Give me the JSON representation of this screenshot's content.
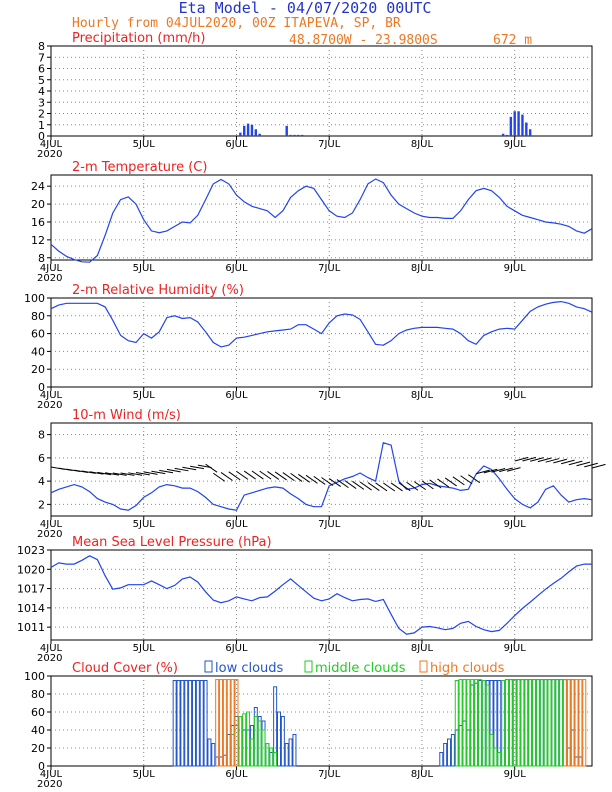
{
  "header": {
    "title": "Eta Model - 04/07/2020 00UTC",
    "subtitle": "Hourly from 04JUL2020, 00Z  ITAPEVA, SP, BR",
    "coords": "48.8700W - 23.9800S",
    "elevation": "672  m"
  },
  "colors": {
    "title": "#2233cc",
    "subtitle": "#ee7722",
    "panel_title": "#ee2222",
    "line": "#2244ee",
    "low_clouds": "#2255cc",
    "middle_clouds": "#22cc22",
    "high_clouds": "#ee7722",
    "grid": "#888888"
  },
  "x_axis": {
    "start_label": "4JUL",
    "year_label": "2020",
    "ticks": [
      "4JUL",
      "5JUL",
      "6JUL",
      "7JUL",
      "8JUL",
      "9JUL"
    ]
  },
  "chart_data": [
    {
      "type": "bar",
      "title": "Precipitation (mm/h)",
      "ylim": [
        0,
        8
      ],
      "yticks": [
        "0",
        "1",
        "2",
        "3",
        "4",
        "5",
        "6",
        "7",
        "8"
      ],
      "x_units": "hours since 04JUL2020 00Z",
      "x": [
        49,
        50,
        51,
        52,
        53,
        54,
        61,
        62,
        63,
        64,
        65,
        117,
        118,
        119,
        120,
        121,
        122,
        123,
        124
      ],
      "values": [
        0.3,
        0.9,
        1.1,
        1.0,
        0.6,
        0.2,
        0.9,
        0.1,
        0.1,
        0.1,
        0.1,
        0.2,
        0.1,
        1.7,
        2.2,
        2.2,
        1.9,
        1.2,
        0.6
      ]
    },
    {
      "type": "line",
      "title": "2-m Temperature (C)",
      "ylim": [
        7.5,
        26.5
      ],
      "yticks": [
        "8",
        "12",
        "16",
        "20",
        "24"
      ],
      "x_units": "hours since 04JUL2020 00Z",
      "x": [
        0,
        2,
        4,
        6,
        8,
        10,
        12,
        14,
        16,
        18,
        20,
        22,
        24,
        26,
        28,
        30,
        32,
        34,
        36,
        38,
        40,
        42,
        44,
        46,
        48,
        50,
        52,
        54,
        56,
        58,
        60,
        62,
        64,
        66,
        68,
        70,
        72,
        74,
        76,
        78,
        80,
        82,
        84,
        86,
        88,
        90,
        92,
        94,
        96,
        98,
        100,
        102,
        104,
        106,
        108,
        110,
        112,
        114,
        116,
        118,
        120,
        122,
        124,
        126,
        128,
        130,
        132,
        134,
        136,
        138,
        140
      ],
      "values": [
        11.0,
        9.5,
        8.3,
        7.6,
        7.1,
        7.0,
        8.5,
        13.0,
        18.0,
        21.0,
        21.6,
        20.0,
        16.5,
        14.0,
        13.6,
        14.0,
        15.0,
        16.0,
        15.8,
        17.5,
        21.0,
        24.5,
        25.5,
        24.5,
        22.0,
        20.5,
        19.5,
        19.0,
        18.5,
        17.0,
        18.5,
        21.5,
        23.0,
        24.0,
        23.5,
        21.0,
        18.5,
        17.3,
        17.0,
        18.0,
        21.0,
        24.5,
        25.6,
        24.8,
        22.0,
        20.0,
        19.0,
        18.0,
        17.3,
        17.0,
        17.0,
        16.8,
        16.8,
        18.5,
        21.0,
        23.0,
        23.5,
        23.0,
        21.5,
        19.5,
        18.5,
        17.5,
        17.0,
        16.5,
        16.0,
        15.8,
        15.5,
        15.0,
        14.0,
        13.5,
        14.5
      ]
    },
    {
      "type": "line",
      "title": "2-m Relative Humidity (%)",
      "ylim": [
        0,
        100
      ],
      "yticks": [
        "0",
        "20",
        "40",
        "60",
        "80",
        "100"
      ],
      "x_units": "hours since 04JUL2020 00Z",
      "x": [
        0,
        2,
        4,
        6,
        8,
        10,
        12,
        14,
        16,
        18,
        20,
        22,
        24,
        26,
        28,
        30,
        32,
        34,
        36,
        38,
        40,
        42,
        44,
        46,
        48,
        50,
        52,
        54,
        56,
        58,
        60,
        62,
        64,
        66,
        68,
        70,
        72,
        74,
        76,
        78,
        80,
        82,
        84,
        86,
        88,
        90,
        92,
        94,
        96,
        98,
        100,
        102,
        104,
        106,
        108,
        110,
        112,
        114,
        116,
        118,
        120,
        122,
        124,
        126,
        128,
        130,
        132,
        134,
        136,
        138,
        140
      ],
      "values": [
        88,
        92,
        94,
        94,
        94,
        94,
        94,
        90,
        75,
        58,
        52,
        50,
        60,
        55,
        62,
        78,
        80,
        77,
        78,
        73,
        62,
        50,
        45,
        47,
        55,
        56,
        58,
        60,
        62,
        63,
        64,
        65,
        70,
        70,
        65,
        60,
        72,
        80,
        82,
        81,
        76,
        62,
        48,
        47,
        52,
        60,
        64,
        66,
        67,
        67,
        67,
        66,
        65,
        60,
        52,
        48,
        58,
        62,
        65,
        66,
        65,
        75,
        85,
        90,
        93,
        95,
        96,
        94,
        90,
        88,
        84
      ]
    },
    {
      "type": "line",
      "title": "10-m Wind (m/s)",
      "ylim": [
        1,
        9
      ],
      "yticks": [
        "2",
        "4",
        "6",
        "8"
      ],
      "x_units": "hours since 04JUL2020 00Z",
      "x": [
        0,
        2,
        4,
        6,
        8,
        10,
        12,
        14,
        16,
        18,
        20,
        22,
        24,
        26,
        28,
        30,
        32,
        34,
        36,
        38,
        40,
        42,
        44,
        46,
        48,
        50,
        52,
        54,
        56,
        58,
        60,
        62,
        64,
        66,
        68,
        70,
        72,
        74,
        76,
        78,
        80,
        82,
        84,
        86,
        88,
        90,
        92,
        94,
        96,
        98,
        100,
        102,
        104,
        106,
        108,
        110,
        112,
        114,
        116,
        118,
        120,
        122,
        124,
        126,
        128,
        130,
        132,
        134,
        136,
        138,
        140
      ],
      "values": [
        3.0,
        3.3,
        3.5,
        3.7,
        3.5,
        3.1,
        2.5,
        2.2,
        2.0,
        1.6,
        1.5,
        1.9,
        2.6,
        3.0,
        3.5,
        3.7,
        3.6,
        3.4,
        3.4,
        3.1,
        2.6,
        2.0,
        1.8,
        1.6,
        1.5,
        2.8,
        3.0,
        3.2,
        3.4,
        3.5,
        3.4,
        2.9,
        2.5,
        2.0,
        1.8,
        1.8,
        3.6,
        3.9,
        4.2,
        4.4,
        4.7,
        4.3,
        4.0,
        7.3,
        7.1,
        4.0,
        3.3,
        3.4,
        3.7,
        3.8,
        3.6,
        3.5,
        3.4,
        3.2,
        3.3,
        4.6,
        5.3,
        5.0,
        4.2,
        3.3,
        2.5,
        2.0,
        1.7,
        2.2,
        3.3,
        3.6,
        2.8,
        2.2,
        2.4,
        2.5,
        2.4
      ]
    },
    {
      "type": "line",
      "title": "Mean Sea Level Pressure (hPa)",
      "ylim": [
        1009,
        1023
      ],
      "yticks": [
        "1011",
        "1014",
        "1017",
        "1020",
        "1023"
      ],
      "x_units": "hours since 04JUL2020 00Z",
      "x": [
        0,
        2,
        4,
        6,
        8,
        10,
        12,
        14,
        16,
        18,
        20,
        22,
        24,
        26,
        28,
        30,
        32,
        34,
        36,
        38,
        40,
        42,
        44,
        46,
        48,
        50,
        52,
        54,
        56,
        58,
        60,
        62,
        64,
        66,
        68,
        70,
        72,
        74,
        76,
        78,
        80,
        82,
        84,
        86,
        88,
        90,
        92,
        94,
        96,
        98,
        100,
        102,
        104,
        106,
        108,
        110,
        112,
        114,
        116,
        118,
        120,
        122,
        124,
        126,
        128,
        130,
        132,
        134,
        136,
        138,
        140
      ],
      "values": [
        1020.3,
        1021.0,
        1020.8,
        1020.8,
        1021.4,
        1022.1,
        1021.5,
        1019.0,
        1016.9,
        1017.1,
        1017.6,
        1017.6,
        1017.6,
        1018.2,
        1017.6,
        1017.0,
        1017.5,
        1018.5,
        1018.8,
        1018.0,
        1016.5,
        1015.2,
        1014.8,
        1015.1,
        1015.7,
        1015.4,
        1015.1,
        1015.6,
        1015.7,
        1016.6,
        1017.6,
        1018.5,
        1017.5,
        1016.5,
        1015.5,
        1015.1,
        1015.4,
        1016.2,
        1015.6,
        1015.1,
        1015.3,
        1015.4,
        1015.0,
        1015.3,
        1013.0,
        1010.8,
        1009.9,
        1010.1,
        1011.0,
        1011.1,
        1010.9,
        1010.6,
        1010.8,
        1011.6,
        1011.9,
        1011.1,
        1010.6,
        1010.3,
        1010.5,
        1011.6,
        1012.8,
        1013.9,
        1014.9,
        1015.9,
        1016.9,
        1017.8,
        1018.6,
        1019.6,
        1020.5,
        1020.8,
        1020.8
      ]
    },
    {
      "type": "bar",
      "title": "Cloud Cover (%)",
      "ylim": [
        0,
        100
      ],
      "yticks": [
        "0",
        "20",
        "40",
        "60",
        "80",
        "100"
      ],
      "legend": [
        {
          "label": "low clouds",
          "color_key": "low_clouds"
        },
        {
          "label": "middle clouds",
          "color_key": "middle_clouds"
        },
        {
          "label": "high clouds",
          "color_key": "high_clouds"
        }
      ],
      "x_units": "hours since 04JUL2020 00Z",
      "series": [
        {
          "name": "low clouds",
          "x": [
            32,
            33,
            34,
            35,
            36,
            37,
            38,
            39,
            40,
            41,
            42,
            43,
            44,
            45,
            46,
            47,
            48,
            49,
            50,
            51,
            52,
            53,
            54,
            55,
            56,
            57,
            58,
            59,
            60,
            61,
            62,
            63,
            101,
            102,
            103,
            104,
            105,
            106,
            107,
            108,
            109,
            110,
            111,
            112,
            113,
            114,
            115,
            116,
            117,
            118,
            119,
            120,
            121,
            122,
            123,
            124,
            125,
            126,
            127,
            128,
            129,
            130,
            131,
            132,
            133,
            134,
            135,
            136,
            137
          ],
          "values": [
            95,
            95,
            95,
            95,
            95,
            95,
            95,
            95,
            95,
            30,
            25,
            10,
            10,
            12,
            35,
            45,
            55,
            55,
            40,
            40,
            45,
            65,
            55,
            50,
            25,
            15,
            88,
            60,
            55,
            25,
            30,
            35,
            15,
            25,
            30,
            35,
            40,
            45,
            50,
            40,
            90,
            92,
            95,
            95,
            95,
            95,
            95,
            95,
            95,
            96,
            96,
            96,
            96,
            96,
            96,
            96,
            96,
            96,
            96,
            96,
            96,
            96,
            96,
            96,
            96,
            20,
            40,
            10,
            10
          ]
        },
        {
          "name": "middle clouds",
          "x": [
            47,
            48,
            49,
            50,
            51,
            52,
            53,
            54,
            55,
            56,
            57,
            58,
            105,
            106,
            107,
            108,
            109,
            110,
            111,
            112,
            113,
            114,
            115,
            116,
            117,
            118,
            119,
            120,
            121,
            122,
            123,
            124,
            125,
            126,
            127,
            128,
            129,
            130,
            131,
            132,
            133,
            134,
            135
          ],
          "values": [
            35,
            45,
            55,
            58,
            60,
            30,
            55,
            50,
            40,
            25,
            20,
            15,
            95,
            96,
            96,
            96,
            96,
            96,
            96,
            95,
            90,
            35,
            20,
            15,
            95,
            96,
            96,
            96,
            96,
            96,
            96,
            96,
            96,
            96,
            96,
            96,
            96,
            96,
            96,
            96,
            96,
            96,
            96
          ]
        },
        {
          "name": "high clouds",
          "x": [
            43,
            44,
            45,
            46,
            47,
            48,
            133,
            134,
            135,
            136,
            137,
            138
          ],
          "values": [
            96,
            96,
            96,
            96,
            96,
            96,
            96,
            96,
            96,
            96,
            96,
            96
          ]
        }
      ]
    }
  ]
}
